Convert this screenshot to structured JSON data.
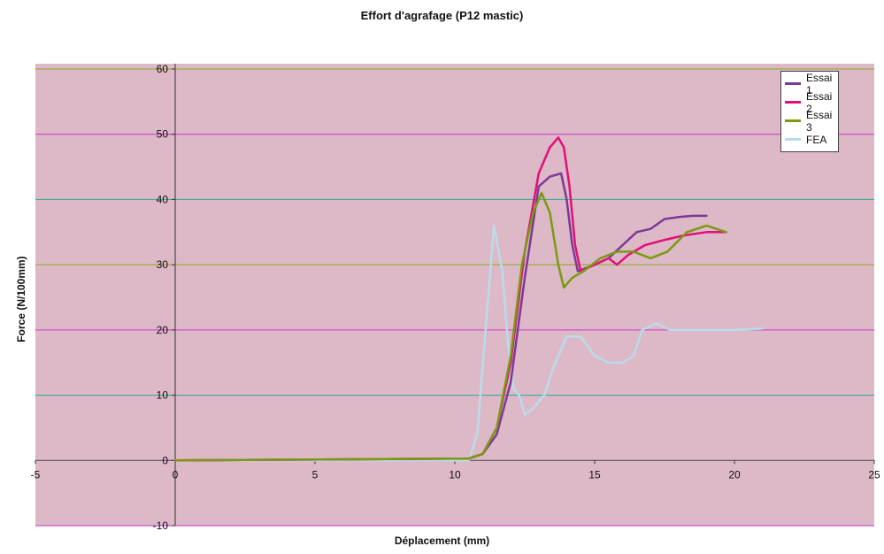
{
  "chart_data": {
    "type": "line",
    "title": "Effort d'agrafage (P12 mastic)",
    "xlabel": "Déplacement (mm)",
    "ylabel": "Force (N/100mm)",
    "xlim": [
      -5,
      25
    ],
    "ylim": [
      -10,
      60
    ],
    "x_ticks": [
      -5,
      0,
      5,
      10,
      15,
      20,
      25
    ],
    "y_ticks": [
      -10,
      0,
      10,
      20,
      30,
      40,
      50,
      60
    ],
    "legend_position": "top-right",
    "background_color": "#ddb8c6",
    "gridline_colors": [
      "#cc33cc",
      "#88aa22",
      "#22aa99"
    ],
    "series": [
      {
        "name": "Essai 1",
        "color": "#7b3a96",
        "points": [
          [
            0,
            0
          ],
          [
            10.5,
            0.3
          ],
          [
            11.0,
            1
          ],
          [
            11.5,
            4
          ],
          [
            12.0,
            12
          ],
          [
            12.5,
            28
          ],
          [
            13.0,
            42
          ],
          [
            13.4,
            43.5
          ],
          [
            13.8,
            44
          ],
          [
            14.0,
            40
          ],
          [
            14.2,
            33
          ],
          [
            14.4,
            29
          ],
          [
            15.0,
            30
          ],
          [
            15.5,
            31
          ],
          [
            16.0,
            33
          ],
          [
            16.5,
            35
          ],
          [
            17.0,
            35.5
          ],
          [
            17.5,
            37
          ],
          [
            18.0,
            37.3
          ],
          [
            18.5,
            37.5
          ],
          [
            19.0,
            37.5
          ]
        ]
      },
      {
        "name": "Essai 2",
        "color": "#e0107a",
        "points": [
          [
            0,
            0
          ],
          [
            10.5,
            0.3
          ],
          [
            11.0,
            1
          ],
          [
            11.5,
            5
          ],
          [
            12.0,
            15
          ],
          [
            12.5,
            32
          ],
          [
            13.0,
            44
          ],
          [
            13.4,
            48
          ],
          [
            13.7,
            49.5
          ],
          [
            13.9,
            48
          ],
          [
            14.1,
            42
          ],
          [
            14.3,
            33
          ],
          [
            14.5,
            29
          ],
          [
            15.0,
            30
          ],
          [
            15.5,
            31
          ],
          [
            15.8,
            30
          ],
          [
            16.2,
            31.5
          ],
          [
            16.8,
            33
          ],
          [
            17.5,
            33.8
          ],
          [
            18.2,
            34.5
          ],
          [
            19.0,
            35
          ],
          [
            19.7,
            35
          ]
        ]
      },
      {
        "name": "Essai 3",
        "color": "#7a9a10",
        "points": [
          [
            0,
            0
          ],
          [
            10.5,
            0.3
          ],
          [
            11.0,
            1
          ],
          [
            11.5,
            5
          ],
          [
            12.0,
            16
          ],
          [
            12.4,
            30
          ],
          [
            12.8,
            38
          ],
          [
            13.1,
            41
          ],
          [
            13.4,
            38
          ],
          [
            13.7,
            30
          ],
          [
            13.9,
            26.5
          ],
          [
            14.2,
            28
          ],
          [
            14.6,
            29
          ],
          [
            15.2,
            31
          ],
          [
            15.8,
            32
          ],
          [
            16.4,
            32
          ],
          [
            17.0,
            31
          ],
          [
            17.6,
            32
          ],
          [
            18.3,
            35
          ],
          [
            19.0,
            36
          ],
          [
            19.7,
            35
          ]
        ]
      },
      {
        "name": "FEA",
        "color": "#b8dde8",
        "points": [
          [
            0,
            0
          ],
          [
            10.5,
            0
          ],
          [
            10.8,
            4
          ],
          [
            11.1,
            20
          ],
          [
            11.4,
            36
          ],
          [
            11.7,
            29
          ],
          [
            11.9,
            18
          ],
          [
            12.1,
            11
          ],
          [
            12.3,
            10
          ],
          [
            12.5,
            7
          ],
          [
            12.8,
            8
          ],
          [
            13.2,
            10
          ],
          [
            13.5,
            14
          ],
          [
            14.0,
            19
          ],
          [
            14.5,
            19
          ],
          [
            15.0,
            16
          ],
          [
            15.5,
            15
          ],
          [
            16.0,
            15
          ],
          [
            16.4,
            16
          ],
          [
            16.7,
            20
          ],
          [
            17.2,
            21
          ],
          [
            17.7,
            20
          ],
          [
            18.2,
            20
          ],
          [
            19.0,
            20
          ],
          [
            20.0,
            20
          ],
          [
            21.0,
            20.2
          ]
        ]
      }
    ]
  }
}
